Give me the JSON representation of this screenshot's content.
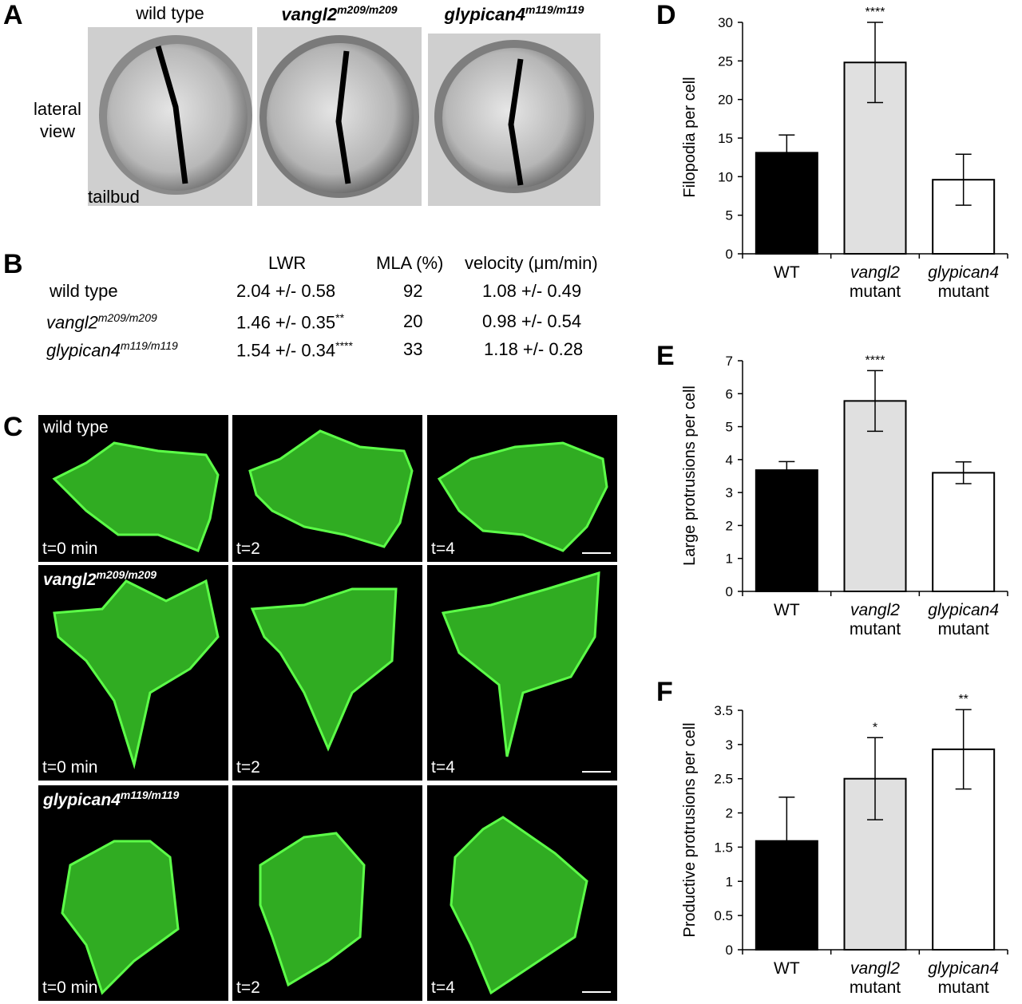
{
  "panels": {
    "A": "A",
    "B": "B",
    "C": "C",
    "D": "D",
    "E": "E",
    "F": "F"
  },
  "panelA": {
    "titles": [
      {
        "base": "wild type",
        "sup": ""
      },
      {
        "base": "vangl2",
        "sup": "m209/m209"
      },
      {
        "base": "glypican4",
        "sup": "m119/m119"
      }
    ],
    "side_label_1": "lateral",
    "side_label_2": "view",
    "tailbud": "tailbud"
  },
  "panelB": {
    "headers": {
      "lwr": "LWR",
      "mla": "MLA (%)",
      "velocity": "velocity (μm/min)"
    },
    "rows": [
      {
        "genotype": "wild type",
        "sup": "",
        "lwr": "2.04 +/- 0.58",
        "lwr_sig": "",
        "mla": "92",
        "velocity": "1.08 +/- 0.49"
      },
      {
        "genotype": "vangl2",
        "sup": "m209/m209",
        "lwr": "1.46 +/- 0.35",
        "lwr_sig": "**",
        "mla": "20",
        "velocity": "0.98 +/- 0.54"
      },
      {
        "genotype": "glypican4",
        "sup": "m119/m119",
        "lwr": "1.54 +/- 0.34",
        "lwr_sig": "****",
        "mla": "33",
        "velocity": "1.18 +/- 0.28"
      }
    ]
  },
  "panelC": {
    "row_labels": [
      {
        "base": "wild type",
        "sup": ""
      },
      {
        "base": "vangl2",
        "sup": "m209/m209"
      },
      {
        "base": "glypican4",
        "sup": "m119/m119"
      }
    ],
    "time_labels": [
      "t=0 min",
      "t=2",
      "t=4"
    ],
    "cell_color": "#3ddc2c"
  },
  "chart_data": [
    {
      "type": "bar",
      "panel": "D",
      "ylabel": "Filopodia per cell",
      "ylim": [
        0,
        30
      ],
      "yticks": [
        0,
        5,
        10,
        15,
        20,
        25,
        30
      ],
      "categories": [
        [
          "WT"
        ],
        [
          "vangl2",
          "mutant"
        ],
        [
          "glypican4",
          "mutant"
        ]
      ],
      "values": [
        13.1,
        24.8,
        9.6
      ],
      "errors": [
        2.3,
        5.2,
        3.3
      ],
      "significance": [
        "",
        "****",
        ""
      ],
      "bar_colors": [
        "#000000",
        "#e0e0e0",
        "#ffffff"
      ]
    },
    {
      "type": "bar",
      "panel": "E",
      "ylabel": "Large protrusions per cell",
      "ylim": [
        0,
        7
      ],
      "yticks": [
        0,
        1,
        2,
        3,
        4,
        5,
        6,
        7
      ],
      "categories": [
        [
          "WT"
        ],
        [
          "vangl2",
          "mutant"
        ],
        [
          "glypican4",
          "mutant"
        ]
      ],
      "values": [
        3.68,
        5.78,
        3.6
      ],
      "errors": [
        0.26,
        0.92,
        0.33
      ],
      "significance": [
        "",
        "****",
        ""
      ],
      "bar_colors": [
        "#000000",
        "#e0e0e0",
        "#ffffff"
      ]
    },
    {
      "type": "bar",
      "panel": "F",
      "ylabel": "Productive protrusions per cell",
      "ylim": [
        0,
        3.5
      ],
      "yticks": [
        0,
        0.5,
        1,
        1.5,
        2,
        2.5,
        3,
        3.5
      ],
      "categories": [
        [
          "WT"
        ],
        [
          "vangl2",
          "mutant"
        ],
        [
          "glypican4",
          "mutant"
        ]
      ],
      "values": [
        1.59,
        2.5,
        2.93
      ],
      "errors": [
        0.64,
        0.6,
        0.58
      ],
      "significance": [
        "",
        "*",
        "**"
      ],
      "bar_colors": [
        "#000000",
        "#e0e0e0",
        "#ffffff"
      ]
    }
  ]
}
